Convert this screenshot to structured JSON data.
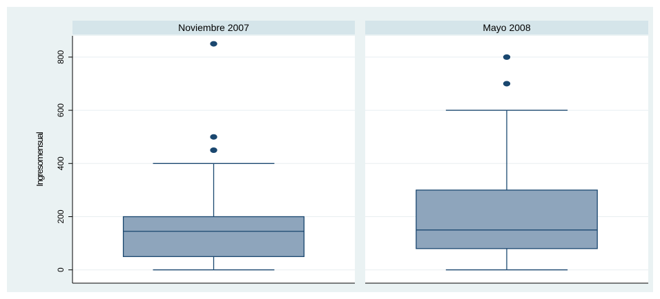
{
  "chart_data": {
    "type": "box",
    "ylabel": "Ingresomensual",
    "ylim": [
      -50,
      880
    ],
    "yticks": [
      0,
      200,
      400,
      600,
      800
    ],
    "grid": true,
    "colors": {
      "outer_background": "#eaf2f3",
      "plot_background": "#ffffff",
      "strip": "#d5e5ea",
      "box_fill": "#8ea5bc",
      "box_stroke": "#1a476f",
      "grid": "#e8eef0"
    },
    "panels": [
      {
        "title": "Noviembre 2007",
        "min": 0,
        "q1": 50,
        "median": 145,
        "q3": 200,
        "max": 400,
        "outliers": [
          450,
          500,
          850
        ]
      },
      {
        "title": "Mayo 2008",
        "min": 0,
        "q1": 80,
        "median": 150,
        "q3": 300,
        "max": 600,
        "outliers": [
          700,
          800
        ]
      }
    ]
  }
}
